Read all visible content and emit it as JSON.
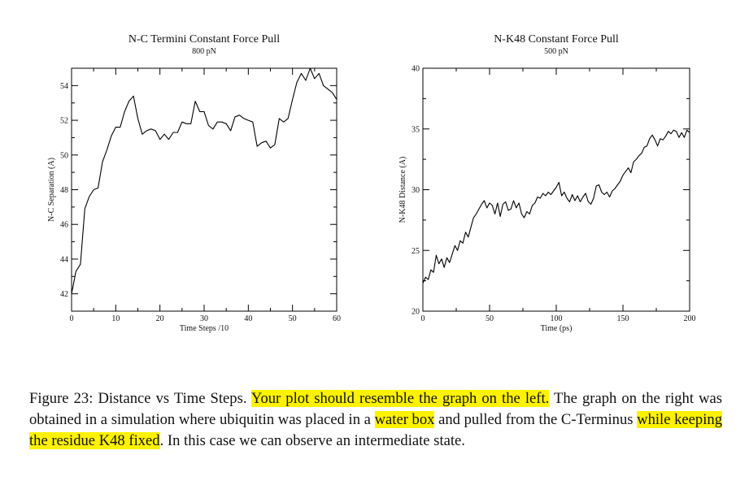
{
  "chart_data": [
    {
      "type": "line",
      "title": "N-C Termini Constant Force Pull",
      "subtitle": "800 pN",
      "xlabel": "Time Steps /10",
      "ylabel": "N-C Separation (A)",
      "xlim": [
        0,
        60
      ],
      "ylim": [
        41,
        55
      ],
      "xticks": [
        "0",
        "10",
        "20",
        "30",
        "40",
        "50",
        "60"
      ],
      "yticks": [
        "42",
        "44",
        "46",
        "48",
        "50",
        "52",
        "54"
      ],
      "grid": false,
      "x": [
        0,
        1,
        2,
        3,
        4,
        5,
        6,
        7,
        8,
        9,
        10,
        11,
        12,
        13,
        14,
        15,
        16,
        17,
        18,
        19,
        20,
        21,
        22,
        23,
        24,
        25,
        26,
        27,
        28,
        29,
        30,
        31,
        32,
        33,
        34,
        35,
        36,
        37,
        38,
        39,
        40,
        41,
        42,
        43,
        44,
        45,
        46,
        47,
        48,
        49,
        50,
        51,
        52,
        53,
        54,
        55,
        56,
        57,
        58,
        59,
        60
      ],
      "y": [
        42.0,
        43.3,
        43.7,
        46.9,
        47.6,
        48.0,
        48.1,
        49.6,
        50.3,
        51.1,
        51.6,
        51.6,
        52.5,
        53.1,
        53.4,
        52.1,
        51.2,
        51.4,
        51.5,
        51.4,
        50.9,
        51.2,
        50.9,
        51.3,
        51.3,
        51.9,
        51.8,
        51.8,
        53.1,
        52.5,
        52.5,
        51.7,
        51.5,
        51.9,
        51.9,
        51.8,
        51.4,
        52.2,
        52.3,
        52.1,
        52.0,
        51.9,
        50.5,
        50.7,
        50.8,
        50.4,
        50.6,
        52.1,
        51.9,
        52.1,
        53.2,
        54.2,
        54.7,
        54.3,
        55.0,
        54.4,
        54.7,
        54.0,
        53.8,
        53.6,
        53.2
      ]
    },
    {
      "type": "line",
      "title": "N-K48 Constant Force Pull",
      "subtitle": "500 pN",
      "xlabel": "Time (ps)",
      "ylabel": "N-K48 Distance (A)",
      "xlim": [
        0,
        200
      ],
      "ylim": [
        20,
        40
      ],
      "xticks": [
        "0",
        "50",
        "100",
        "150",
        "200"
      ],
      "yticks": [
        "20",
        "25",
        "30",
        "35",
        "40"
      ],
      "grid": false,
      "x": [
        0,
        2,
        4,
        6,
        8,
        10,
        12,
        14,
        16,
        18,
        20,
        22,
        24,
        26,
        28,
        30,
        32,
        34,
        36,
        38,
        40,
        42,
        44,
        46,
        48,
        50,
        52,
        54,
        56,
        58,
        60,
        62,
        64,
        66,
        68,
        70,
        72,
        74,
        76,
        78,
        80,
        82,
        84,
        86,
        88,
        90,
        92,
        94,
        96,
        98,
        100,
        102,
        104,
        106,
        108,
        110,
        112,
        114,
        116,
        118,
        120,
        122,
        124,
        126,
        128,
        130,
        132,
        134,
        136,
        138,
        140,
        142,
        144,
        146,
        148,
        150,
        152,
        154,
        156,
        158,
        160,
        162,
        164,
        166,
        168,
        170,
        172,
        174,
        176,
        178,
        180,
        182,
        184,
        186,
        188,
        190,
        192,
        194,
        196,
        198,
        200
      ],
      "y": [
        22.3,
        22.8,
        22.6,
        23.4,
        23.2,
        24.6,
        23.9,
        24.3,
        23.6,
        24.4,
        24.0,
        24.7,
        25.4,
        25.0,
        25.8,
        25.6,
        26.5,
        26.1,
        26.9,
        27.7,
        28.0,
        28.4,
        28.8,
        29.1,
        28.5,
        28.9,
        28.7,
        28.0,
        28.9,
        27.8,
        28.8,
        29.0,
        28.3,
        28.4,
        29.1,
        28.5,
        28.9,
        28.0,
        27.7,
        28.2,
        28.0,
        28.7,
        28.9,
        29.4,
        29.3,
        29.7,
        29.5,
        29.8,
        29.6,
        29.9,
        30.2,
        30.6,
        29.5,
        29.8,
        29.3,
        29.0,
        29.6,
        29.1,
        29.5,
        29.0,
        29.4,
        29.7,
        29.0,
        28.8,
        29.3,
        30.3,
        30.4,
        29.8,
        29.6,
        29.8,
        29.4,
        29.9,
        30.1,
        30.4,
        30.7,
        31.2,
        31.5,
        31.8,
        31.4,
        32.3,
        32.5,
        32.8,
        33.0,
        33.5,
        33.6,
        34.2,
        34.5,
        34.1,
        33.6,
        34.2,
        34.1,
        34.4,
        34.8,
        34.6,
        34.9,
        34.8,
        34.3,
        34.7,
        34.3,
        34.9,
        34.7
      ]
    }
  ],
  "caption": {
    "parts": [
      {
        "text": "Figure 23: Distance vs Time Steps. ",
        "highlight": false
      },
      {
        "text": "Your plot should resemble the graph on the left.",
        "highlight": true
      },
      {
        "text": " The graph on the right was obtained in a simulation where ubiquitin was placed in a ",
        "highlight": false
      },
      {
        "text": "water box",
        "highlight": true
      },
      {
        "text": " and pulled from the C-Terminus ",
        "highlight": false
      },
      {
        "text": "while keeping the residue K48 fixed",
        "highlight": true
      },
      {
        "text": ". In this case we can observe an intermediate state.",
        "highlight": false
      }
    ],
    "highlight_color": "#fff200"
  }
}
